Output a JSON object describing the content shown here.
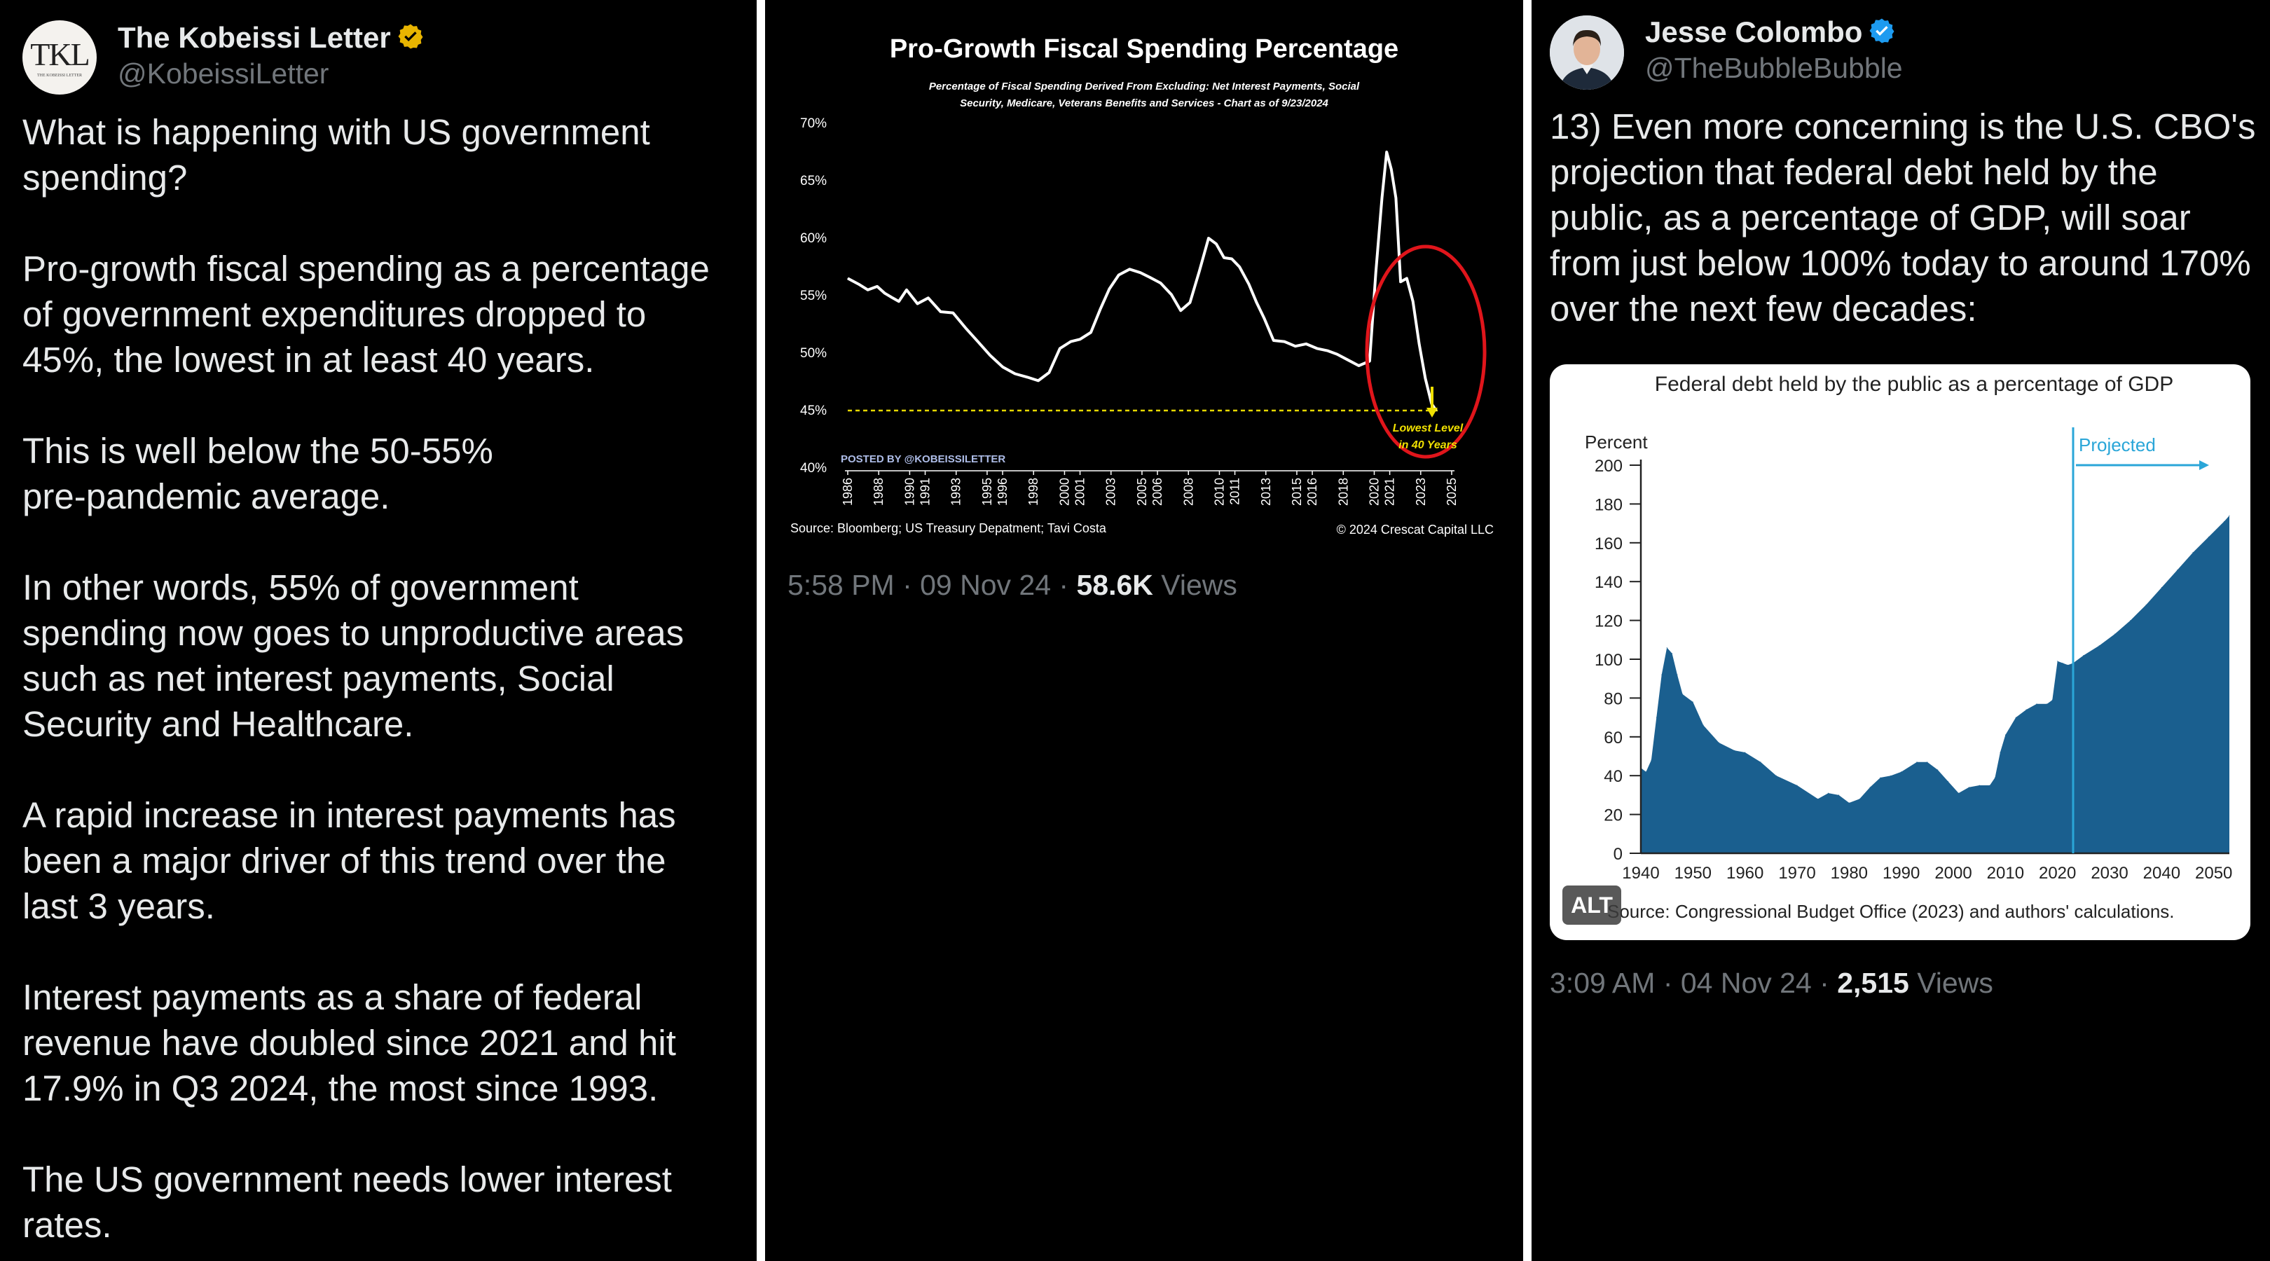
{
  "tweet1": {
    "avatar_text": "TKL",
    "avatar_subtext": "THE KOBEISSI LETTER",
    "display_name": "The Kobeissi Letter",
    "handle": "@KobeissiLetter",
    "verified_color": "#e8b400",
    "text": "What is happening with US government\nspending?\n\nPro-growth fiscal spending as a percentage\nof government expenditures dropped to\n45%, the lowest in at least 40 years.\n\nThis is well below the 50-55%\npre-pandemic average.\n\nIn other words, 55% of government\nspending now goes to unproductive areas\nsuch as net interest payments, Social\nSecurity and Healthcare.\n\nA rapid increase in interest payments has\nbeen a major driver of this trend over the\nlast 3 years.\n\nInterest payments as a share of federal\nrevenue have doubled since 2021 and hit\n17.9% in Q3 2024, the most since 1993.\n\nThe US government needs lower interest\nrates."
  },
  "tweet2": {
    "time": "5:58 PM · 09 Nov 24 · ",
    "views_count": "58.6K",
    "views_label": " Views"
  },
  "tweet3": {
    "display_name": "Jesse Colombo",
    "handle": "@TheBubbleBubble",
    "verified_color": "#1d9bf0",
    "text": "13) Even more concerning is the U.S. CBO's\nprojection that federal debt held by the\npublic, as a percentage of GDP, will soar\nfrom just below 100% today to around 170%\nover the next few decades:",
    "alt_label": "ALT",
    "time": "3:09 AM · 04 Nov 24 · ",
    "views_count": "2,515",
    "views_label": " Views"
  },
  "chart_data": [
    {
      "type": "line",
      "title": "Pro-Growth Fiscal Spending Percentage",
      "subtitle_line1": "Percentage of Fiscal Spending Derived From Excluding:  Net Interest Payments, Social",
      "subtitle_line2": "Security, Medicare, Veterans Benefits and Services - Chart as of 9/23/2024",
      "posted_by": "POSTED BY @KOBEISSILETTER",
      "source": "Source: Bloomberg; US Treasury Depatment; Tavi Costa",
      "copyright": "© 2024 Crescat Capital LLC",
      "annotation_line1": "Lowest Level",
      "annotation_line2": "in 40 Years",
      "ylim": [
        40,
        70
      ],
      "yticks": [
        "40%",
        "45%",
        "50%",
        "55%",
        "60%",
        "65%",
        "70%"
      ],
      "xlim": [
        1986,
        2025
      ],
      "xticks": [
        "1986",
        "1988",
        "1990",
        "1991",
        "1993",
        "1995",
        "1996",
        "1998",
        "2000",
        "2001",
        "2003",
        "2005",
        "2006",
        "2008",
        "2010",
        "2011",
        "2013",
        "2015",
        "2016",
        "2018",
        "2020",
        "2021",
        "2023",
        "2025"
      ],
      "reference_line": 45,
      "colors": {
        "line": "#ffffff",
        "reference": "#e6d800",
        "circle": "#e0151b",
        "annotation": "#f0e000"
      },
      "series": [
        {
          "x": [
            1986,
            1986.7,
            1987.3,
            1987.9,
            1988.4,
            1988.9,
            1989.3,
            1989.8,
            1990.5,
            1991.2,
            1992,
            1992.8,
            1993.6,
            1994.4,
            1995.2,
            1996,
            1996.8,
            1997.6,
            1998.3,
            1999,
            1999.7,
            2000.4,
            2001,
            2001.7,
            2002.3,
            2002.9,
            2003.5,
            2004.2,
            2004.9,
            2005.5,
            2006.2,
            2006.9,
            2007.5,
            2008.1,
            2008.7,
            2009.3,
            2009.8,
            2010.3,
            2010.8,
            2011.3,
            2011.9,
            2012.4,
            2012.9,
            2013.5,
            2014.2,
            2014.9,
            2015.6,
            2016.3,
            2017,
            2017.6,
            2018.3,
            2019,
            2019.7,
            2020.1,
            2020.5,
            2020.8,
            2021.1,
            2021.4,
            2021.7,
            2022.1,
            2022.5,
            2022.9,
            2023.3,
            2023.7,
            2024
          ],
          "values": [
            56.5,
            56,
            55.5,
            55.8,
            55.2,
            54.8,
            54.5,
            55.5,
            54.3,
            54.8,
            53.6,
            53.5,
            52.2,
            51,
            49.8,
            48.8,
            48.2,
            47.9,
            47.6,
            48.3,
            50.4,
            51,
            51.2,
            51.8,
            53.8,
            55.6,
            56.8,
            57.3,
            57,
            56.6,
            56.1,
            55.1,
            53.7,
            54.4,
            57.1,
            60,
            59.5,
            58.3,
            58.2,
            57.5,
            56,
            54.4,
            53,
            51.1,
            51,
            50.6,
            50.8,
            50.4,
            50.2,
            49.9,
            49.4,
            48.9,
            49.3,
            57,
            63.5,
            67.5,
            66,
            63.5,
            56.2,
            56.5,
            54.5,
            50.8,
            47.8,
            45.6,
            45
          ]
        }
      ]
    },
    {
      "type": "area",
      "title": "Federal debt held by the public as a percentage of GDP",
      "ylabel": "Percent",
      "source": "Source: Congressional Budget Office (2023) and authors' calculations.",
      "projected_label": "Projected",
      "projected_start": 2023,
      "ylim": [
        0,
        200
      ],
      "yticks": [
        "0",
        "20",
        "40",
        "60",
        "80",
        "100",
        "120",
        "140",
        "160",
        "180",
        "200"
      ],
      "xlim": [
        1940,
        2053
      ],
      "xticks": [
        "1940",
        "1950",
        "1960",
        "1970",
        "1980",
        "1990",
        "2000",
        "2010",
        "2020",
        "2030",
        "2040",
        "2050"
      ],
      "colors": {
        "area": "#1a5f8f",
        "projected": "#2aa6d8",
        "axis": "#222222"
      },
      "series": [
        {
          "x": [
            1940,
            1941,
            1942,
            1943,
            1944,
            1945,
            1946,
            1947,
            1948,
            1950,
            1952,
            1955,
            1958,
            1960,
            1963,
            1966,
            1970,
            1974,
            1976,
            1978,
            1980,
            1982,
            1984,
            1986,
            1988,
            1990,
            1993,
            1995,
            1997,
            1999,
            2001,
            2003,
            2005,
            2007,
            2008,
            2009,
            2010,
            2012,
            2014,
            2016,
            2018,
            2019,
            2020,
            2021,
            2022,
            2023,
            2025,
            2028,
            2031,
            2034,
            2037,
            2040,
            2043,
            2046,
            2049,
            2052,
            2053
          ],
          "values": [
            44,
            42,
            48,
            70,
            92,
            106,
            103,
            92,
            82,
            78,
            66,
            57,
            53,
            52,
            47,
            40,
            35,
            28,
            31,
            30,
            26,
            28,
            34,
            39,
            40,
            42,
            47,
            47,
            43,
            37,
            31,
            34,
            35,
            35,
            39,
            52,
            61,
            70,
            74,
            77,
            77,
            79,
            99,
            98,
            97,
            98,
            102,
            107,
            113,
            120,
            128,
            137,
            146,
            155,
            163,
            171,
            174
          ]
        }
      ]
    }
  ]
}
